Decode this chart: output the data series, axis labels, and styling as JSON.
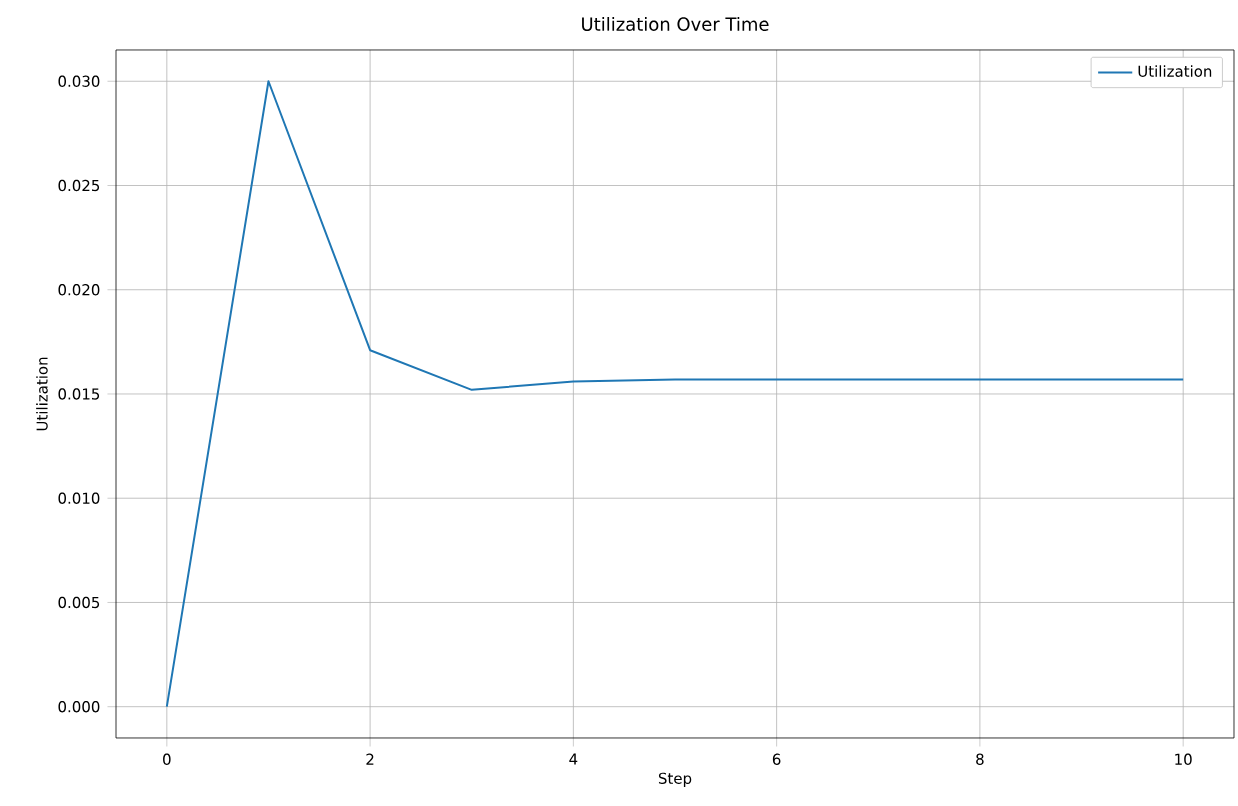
{
  "chart_data": {
    "type": "line",
    "title": "Utilization Over Time",
    "xlabel": "Step",
    "ylabel": "Utilization",
    "x": [
      0,
      1,
      2,
      3,
      4,
      5,
      6,
      7,
      8,
      9,
      10
    ],
    "series": [
      {
        "name": "Utilization",
        "color": "#1f77b4",
        "values": [
          0,
          0.03,
          0.0171,
          0.0152,
          0.0156,
          0.0157,
          0.0157,
          0.0157,
          0.0157,
          0.0157,
          0.0157
        ]
      }
    ],
    "xlim": [
      -0.5,
      10.5
    ],
    "ylim": [
      -0.0015,
      0.0315
    ],
    "xticks": [
      0,
      2,
      4,
      6,
      8,
      10
    ],
    "yticks": [
      {
        "value": 0,
        "label": "0.000"
      },
      {
        "value": 0.005,
        "label": "0.005"
      },
      {
        "value": 0.01,
        "label": "0.010"
      },
      {
        "value": 0.015,
        "label": "0.015"
      },
      {
        "value": 0.02,
        "label": "0.020"
      },
      {
        "value": 0.025,
        "label": "0.025"
      },
      {
        "value": 0.03,
        "label": "0.030"
      }
    ],
    "grid": true,
    "legend": "top right",
    "marker": "none"
  }
}
